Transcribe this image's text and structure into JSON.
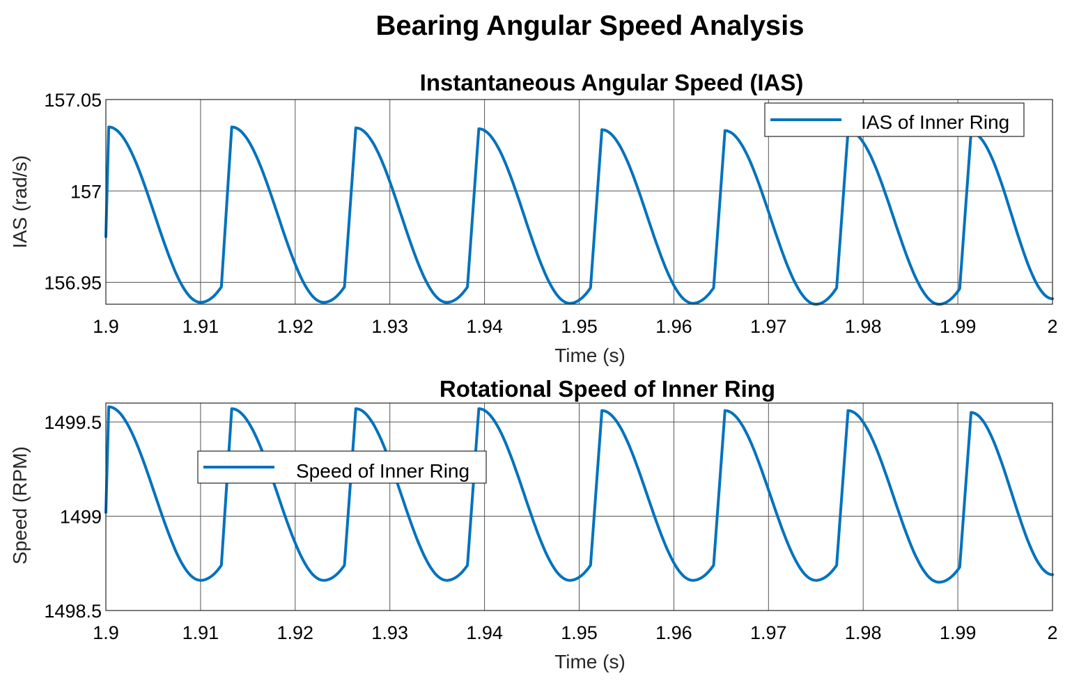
{
  "figure_title": "Bearing Angular Speed Analysis",
  "colors": {
    "series": "#0072BD",
    "grid": "#555555",
    "frame": "#262626"
  },
  "chart_data": [
    {
      "type": "line",
      "title": "Instantaneous Angular Speed (IAS)",
      "xlabel": "Time (s)",
      "ylabel": "IAS (rad/s)",
      "xlim": [
        1.9,
        2.0
      ],
      "ylim": [
        156.938,
        157.05
      ],
      "xticks": [
        1.9,
        1.91,
        1.92,
        1.93,
        1.94,
        1.95,
        1.96,
        1.97,
        1.98,
        1.99,
        2.0
      ],
      "xtick_labels": [
        "1.9",
        "1.91",
        "1.92",
        "1.93",
        "1.94",
        "1.95",
        "1.96",
        "1.97",
        "1.98",
        "1.99",
        "2"
      ],
      "yticks": [
        156.95,
        157.0,
        157.05
      ],
      "ytick_labels": [
        "156.95",
        "157",
        "157.05"
      ],
      "grid": true,
      "legend_position": "top-right",
      "series": [
        {
          "name": "IAS of Inner Ring",
          "x": [
            1.9,
            1.9003,
            1.91,
            1.9122,
            1.9133,
            1.923,
            1.9252,
            1.9264,
            1.936,
            1.9382,
            1.9394,
            1.949,
            1.9512,
            1.9524,
            1.962,
            1.9642,
            1.9654,
            1.975,
            1.9772,
            1.9784,
            1.988,
            1.9902,
            1.9914,
            2.0
          ],
          "y": [
            156.975,
            157.035,
            156.939,
            156.9475,
            157.035,
            156.939,
            156.9475,
            157.0345,
            156.939,
            156.9475,
            157.034,
            156.9385,
            156.947,
            157.0335,
            156.9385,
            156.947,
            157.033,
            156.938,
            156.947,
            157.033,
            156.938,
            156.9465,
            157.032,
            156.941
          ]
        }
      ]
    },
    {
      "type": "line",
      "title": "Rotational Speed of Inner Ring",
      "xlabel": "Time (s)",
      "ylabel": "Speed (RPM)",
      "xlim": [
        1.9,
        2.0
      ],
      "ylim": [
        1498.5,
        1499.6
      ],
      "xticks": [
        1.9,
        1.91,
        1.92,
        1.93,
        1.94,
        1.95,
        1.96,
        1.97,
        1.98,
        1.99,
        2.0
      ],
      "xtick_labels": [
        "1.9",
        "1.91",
        "1.92",
        "1.93",
        "1.94",
        "1.95",
        "1.96",
        "1.97",
        "1.98",
        "1.99",
        "2"
      ],
      "yticks": [
        1498.5,
        1499.0,
        1499.5
      ],
      "ytick_labels": [
        "1498.5",
        "1499",
        "1499.5"
      ],
      "grid": true,
      "legend_position": "upper-left",
      "series": [
        {
          "name": "Speed of Inner Ring",
          "x": [
            1.9,
            1.9003,
            1.91,
            1.9122,
            1.9133,
            1.923,
            1.9252,
            1.9264,
            1.936,
            1.9382,
            1.9394,
            1.949,
            1.9512,
            1.9524,
            1.962,
            1.9642,
            1.9654,
            1.975,
            1.9772,
            1.9784,
            1.988,
            1.9902,
            1.9914,
            2.0
          ],
          "y": [
            1499.02,
            1499.58,
            1498.66,
            1498.74,
            1499.57,
            1498.66,
            1498.74,
            1499.57,
            1498.66,
            1498.74,
            1499.57,
            1498.66,
            1498.74,
            1499.56,
            1498.66,
            1498.74,
            1499.56,
            1498.66,
            1498.74,
            1499.56,
            1498.65,
            1498.73,
            1499.55,
            1498.69
          ]
        }
      ]
    }
  ]
}
